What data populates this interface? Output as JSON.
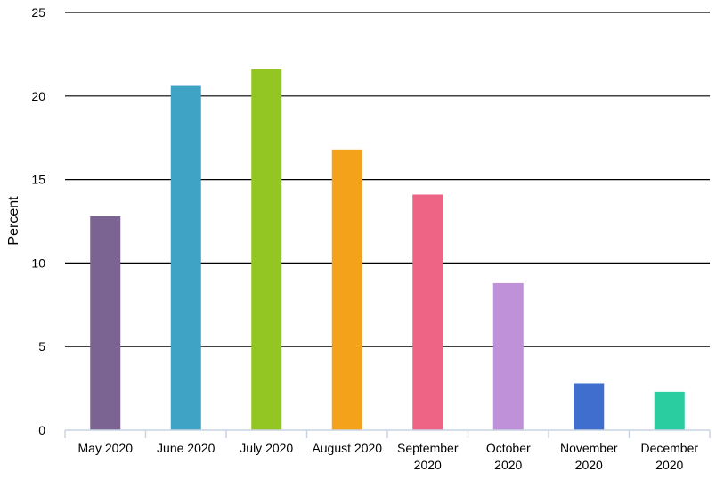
{
  "chart_data": {
    "type": "bar",
    "title": "",
    "xlabel": "",
    "ylabel": "Percent",
    "ylim": [
      0,
      25
    ],
    "yticks": [
      0,
      5,
      10,
      15,
      20,
      25
    ],
    "grid": true,
    "categories": [
      [
        "May 2020"
      ],
      [
        "June 2020"
      ],
      [
        "July 2020"
      ],
      [
        "August 2020"
      ],
      [
        "September",
        "2020"
      ],
      [
        "October",
        "2020"
      ],
      [
        "November",
        "2020"
      ],
      [
        "December",
        "2020"
      ]
    ],
    "values": [
      12.8,
      20.6,
      21.6,
      16.8,
      14.1,
      8.8,
      2.8,
      2.3
    ],
    "colors": [
      "#7b6392",
      "#3ea3c4",
      "#94c623",
      "#f4a21a",
      "#ee6485",
      "#be91d8",
      "#3f6ecf",
      "#2acda0"
    ]
  }
}
